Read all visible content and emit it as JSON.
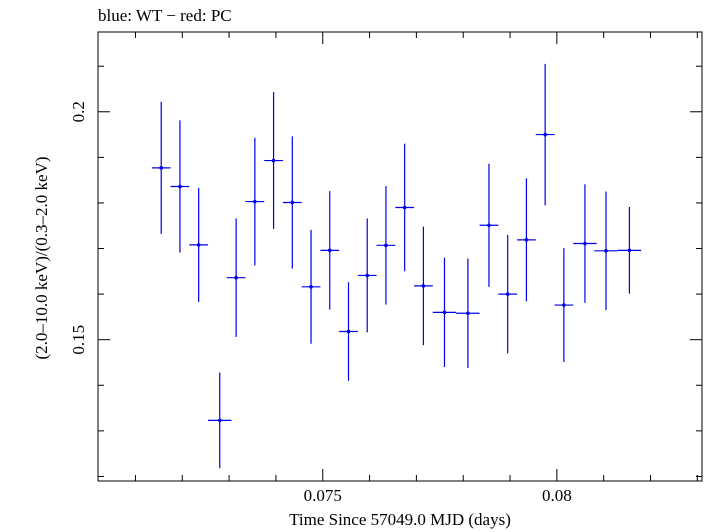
{
  "chart_data": {
    "type": "scatter",
    "title": "blue: WT − red: PC",
    "xlabel": "Time Since 57049.0 MJD (days)",
    "ylabel": "(2.0–10.0 keV)/(0.3–2.0 keV)",
    "xlim": [
      0.0702,
      0.0831
    ],
    "ylim": [
      0.119,
      0.2175
    ],
    "x_ticks": [
      0.075,
      0.08
    ],
    "x_tick_labels": [
      "0.075",
      "0.08"
    ],
    "y_ticks": [
      0.15,
      0.2
    ],
    "y_tick_labels": [
      "0.15",
      "0.2"
    ],
    "grid": false,
    "color": "#0000ee",
    "series": [
      {
        "points": [
          {
            "x": 0.07155,
            "y": 0.1877,
            "xerr": 0.0002,
            "yerr_low": 0.0145,
            "yerr_high": 0.0145
          },
          {
            "x": 0.07195,
            "y": 0.1836,
            "xerr": 0.0002,
            "yerr_low": 0.0145,
            "yerr_high": 0.0145
          },
          {
            "x": 0.07235,
            "y": 0.1708,
            "xerr": 0.0002,
            "yerr_low": 0.0125,
            "yerr_high": 0.0125
          },
          {
            "x": 0.0728,
            "y": 0.1323,
            "xerr": 0.00025,
            "yerr_low": 0.0105,
            "yerr_high": 0.0105
          },
          {
            "x": 0.07315,
            "y": 0.1636,
            "xerr": 0.0002,
            "yerr_low": 0.013,
            "yerr_high": 0.013
          },
          {
            "x": 0.07355,
            "y": 0.1803,
            "xerr": 0.0002,
            "yerr_low": 0.014,
            "yerr_high": 0.014
          },
          {
            "x": 0.07395,
            "y": 0.1893,
            "xerr": 0.0002,
            "yerr_low": 0.015,
            "yerr_high": 0.015
          },
          {
            "x": 0.07435,
            "y": 0.1801,
            "xerr": 0.0002,
            "yerr_low": 0.0145,
            "yerr_high": 0.0145
          },
          {
            "x": 0.07475,
            "y": 0.1616,
            "xerr": 0.0002,
            "yerr_low": 0.0125,
            "yerr_high": 0.0125
          },
          {
            "x": 0.07515,
            "y": 0.1696,
            "xerr": 0.0002,
            "yerr_low": 0.013,
            "yerr_high": 0.013
          },
          {
            "x": 0.07555,
            "y": 0.1518,
            "xerr": 0.0002,
            "yerr_low": 0.0108,
            "yerr_high": 0.0108
          },
          {
            "x": 0.07595,
            "y": 0.1641,
            "xerr": 0.0002,
            "yerr_low": 0.0125,
            "yerr_high": 0.0125
          },
          {
            "x": 0.07635,
            "y": 0.1707,
            "xerr": 0.0002,
            "yerr_low": 0.013,
            "yerr_high": 0.013
          },
          {
            "x": 0.07675,
            "y": 0.179,
            "xerr": 0.0002,
            "yerr_low": 0.014,
            "yerr_high": 0.014
          },
          {
            "x": 0.07715,
            "y": 0.1618,
            "xerr": 0.0002,
            "yerr_low": 0.013,
            "yerr_high": 0.013
          },
          {
            "x": 0.0776,
            "y": 0.156,
            "xerr": 0.00025,
            "yerr_low": 0.012,
            "yerr_high": 0.012
          },
          {
            "x": 0.0781,
            "y": 0.1558,
            "xerr": 0.00025,
            "yerr_low": 0.012,
            "yerr_high": 0.012
          },
          {
            "x": 0.07855,
            "y": 0.1751,
            "xerr": 0.0002,
            "yerr_low": 0.0135,
            "yerr_high": 0.0135
          },
          {
            "x": 0.07895,
            "y": 0.16,
            "xerr": 0.0002,
            "yerr_low": 0.013,
            "yerr_high": 0.013
          },
          {
            "x": 0.07935,
            "y": 0.1719,
            "xerr": 0.0002,
            "yerr_low": 0.0135,
            "yerr_high": 0.0135
          },
          {
            "x": 0.07975,
            "y": 0.195,
            "xerr": 0.0002,
            "yerr_low": 0.0155,
            "yerr_high": 0.0155
          },
          {
            "x": 0.08015,
            "y": 0.1576,
            "xerr": 0.0002,
            "yerr_low": 0.0125,
            "yerr_high": 0.0125
          },
          {
            "x": 0.0806,
            "y": 0.1711,
            "xerr": 0.00025,
            "yerr_low": 0.013,
            "yerr_high": 0.013
          },
          {
            "x": 0.08105,
            "y": 0.1695,
            "xerr": 0.00025,
            "yerr_low": 0.013,
            "yerr_high": 0.013
          },
          {
            "x": 0.08155,
            "y": 0.1696,
            "xerr": 0.00025,
            "yerr_low": 0.0095,
            "yerr_high": 0.0095
          }
        ]
      }
    ]
  }
}
